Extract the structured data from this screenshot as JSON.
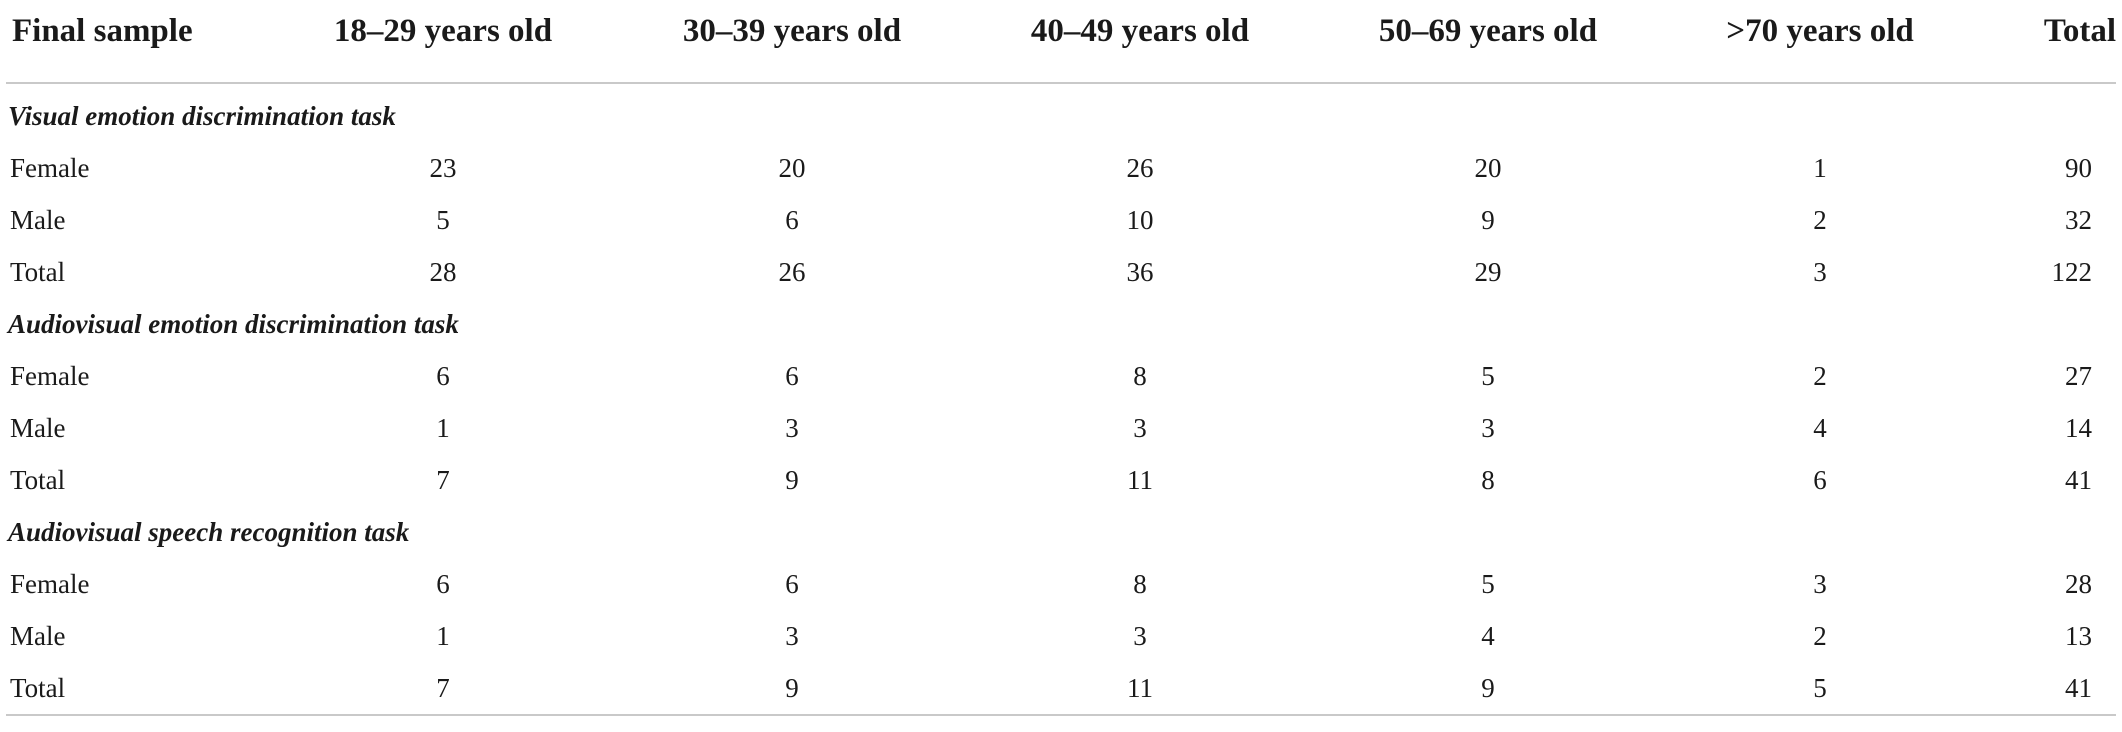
{
  "table": {
    "headers": [
      "Final sample",
      "18–29 years old",
      "30–39 years old",
      "40–49 years old",
      "50–69 years old",
      ">70 years old",
      "Total"
    ],
    "sections": [
      {
        "title": "Visual emotion discrimination task",
        "rows": [
          {
            "label": "Female",
            "values": [
              "23",
              "20",
              "26",
              "20",
              "1",
              "90"
            ]
          },
          {
            "label": "Male",
            "values": [
              "5",
              "6",
              "10",
              "9",
              "2",
              "32"
            ]
          },
          {
            "label": "Total",
            "values": [
              "28",
              "26",
              "36",
              "29",
              "3",
              "122"
            ]
          }
        ]
      },
      {
        "title": "Audiovisual emotion discrimination task",
        "rows": [
          {
            "label": "Female",
            "values": [
              "6",
              "6",
              "8",
              "5",
              "2",
              "27"
            ]
          },
          {
            "label": "Male",
            "values": [
              "1",
              "3",
              "3",
              "3",
              "4",
              "14"
            ]
          },
          {
            "label": "Total",
            "values": [
              "7",
              "9",
              "11",
              "8",
              "6",
              "41"
            ]
          }
        ]
      },
      {
        "title": "Audiovisual speech recognition task",
        "rows": [
          {
            "label": "Female",
            "values": [
              "6",
              "6",
              "8",
              "5",
              "3",
              "28"
            ]
          },
          {
            "label": "Male",
            "values": [
              "1",
              "3",
              "3",
              "4",
              "2",
              "13"
            ]
          },
          {
            "label": "Total",
            "values": [
              "7",
              "9",
              "11",
              "9",
              "5",
              "41"
            ]
          }
        ]
      }
    ]
  }
}
